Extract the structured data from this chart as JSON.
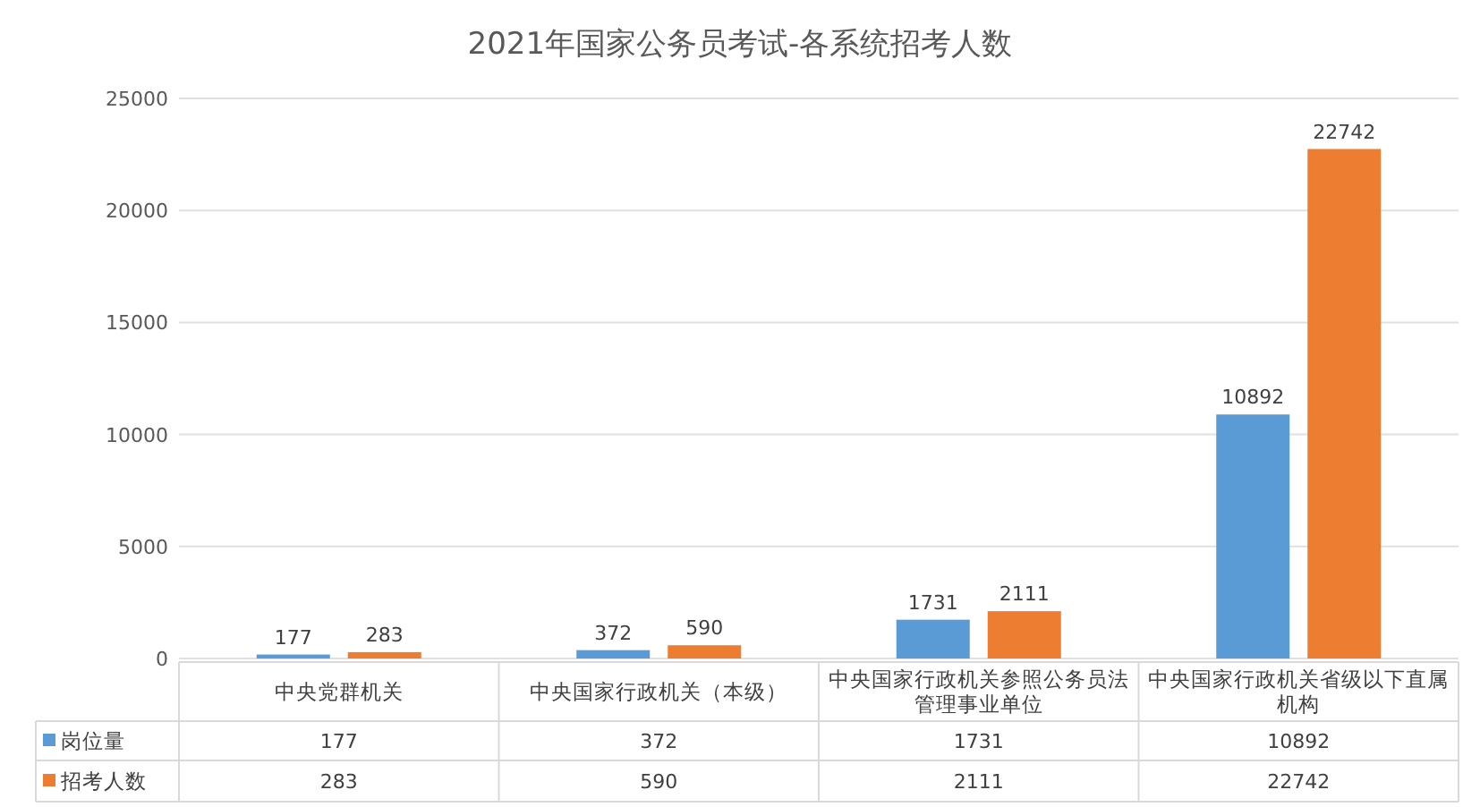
{
  "chart_data": {
    "type": "bar",
    "title": "2021年国家公务员考试-各系统招考人数",
    "categories": [
      "中央党群机关",
      "中央国家行政机关（本级）",
      "中央国家行政机关参照公务员法管理事业单位",
      "中央国家行政机关省级以下直属机构"
    ],
    "series": [
      {
        "name": "岗位量",
        "color": "#5b9bd5",
        "values": [
          177,
          372,
          1731,
          10892
        ],
        "value_labels": [
          "177",
          "372",
          "1731",
          "10892"
        ]
      },
      {
        "name": "招考人数",
        "color": "#ed7d31",
        "values": [
          283,
          590,
          2111,
          22742
        ],
        "value_labels": [
          "283",
          "590",
          "2111",
          "22742"
        ]
      }
    ],
    "ylim": [
      0,
      25000
    ],
    "yticks": [
      0,
      5000,
      10000,
      15000,
      20000,
      25000
    ],
    "grid": "y",
    "data_labels": true,
    "legend": "bottom left"
  }
}
